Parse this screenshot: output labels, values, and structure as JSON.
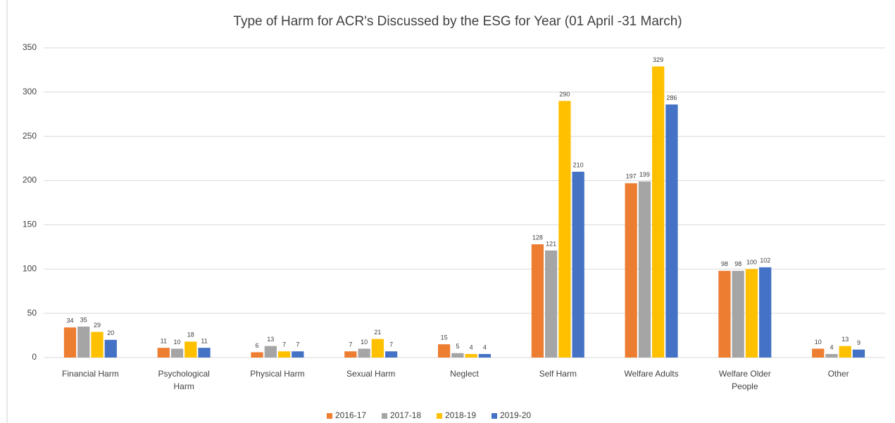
{
  "chart_data": {
    "type": "bar",
    "title": "Type of Harm for ACR's Discussed by the ESG for Year (01 April -31 March)",
    "categories": [
      "Financial Harm",
      "Psychological Harm",
      "Physical Harm",
      "Sexual Harm",
      "Neglect",
      "Self Harm",
      "Welfare Adults",
      "Welfare Older People",
      "Other"
    ],
    "series": [
      {
        "name": "2016-17",
        "color": "#ed7d31",
        "values": [
          34,
          11,
          6,
          7,
          15,
          128,
          197,
          98,
          10
        ]
      },
      {
        "name": "2017-18",
        "color": "#a5a5a5",
        "values": [
          35,
          10,
          13,
          10,
          5,
          121,
          199,
          98,
          4
        ]
      },
      {
        "name": "2018-19",
        "color": "#ffc000",
        "values": [
          29,
          18,
          7,
          21,
          4,
          290,
          329,
          100,
          13
        ]
      },
      {
        "name": "2019-20",
        "color": "#4472c4",
        "values": [
          20,
          11,
          7,
          7,
          4,
          210,
          286,
          102,
          9
        ]
      }
    ],
    "ylim": [
      0,
      350
    ],
    "yticks": [
      0,
      50,
      100,
      150,
      200,
      250,
      300,
      350
    ],
    "grid": true,
    "legend": "bottom"
  }
}
